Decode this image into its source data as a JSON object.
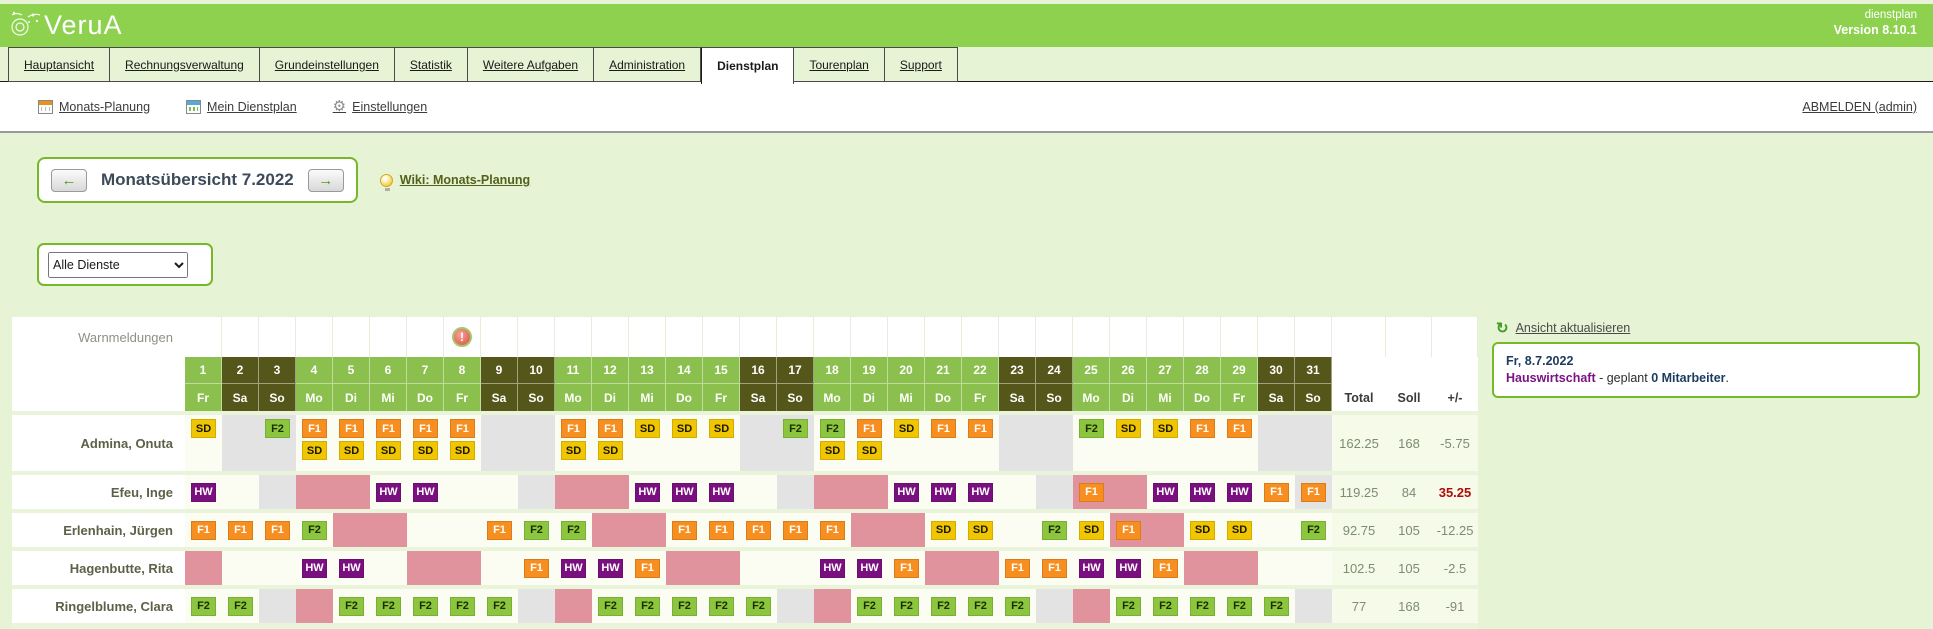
{
  "banner": {
    "logo": "VeruA",
    "app_label": "dienstplan",
    "version_label": "Version 8.10.1"
  },
  "tabs": [
    {
      "label": "Hauptansicht",
      "active": false
    },
    {
      "label": "Rechnungsverwaltung",
      "active": false
    },
    {
      "label": "Grundeinstellungen",
      "active": false
    },
    {
      "label": "Statistik",
      "active": false
    },
    {
      "label": "Weitere Aufgaben",
      "active": false
    },
    {
      "label": "Administration",
      "active": false
    },
    {
      "label": "Dienstplan",
      "active": true
    },
    {
      "label": "Tourenplan",
      "active": false
    },
    {
      "label": "Support",
      "active": false
    }
  ],
  "subnav": {
    "items": [
      {
        "label": "Monats-Planung",
        "icon": "calendar-orange-icon"
      },
      {
        "label": "Mein Dienstplan",
        "icon": "calendar-green-icon"
      },
      {
        "label": "Einstellungen",
        "icon": "gear-icon"
      }
    ],
    "logout": "ABMELDEN (admin)"
  },
  "toolbar": {
    "title": "Monatsübersicht 7.2022",
    "prev": "←",
    "next": "→",
    "wiki_link": "Wiki: Monats-Planung"
  },
  "filter": {
    "selected": "Alle Dienste"
  },
  "roster": {
    "warnings_label": "Warnmeldungen",
    "warning_day": 8,
    "warning_glyph": "!",
    "day_names": [
      "Fr",
      "Sa",
      "So",
      "Mo",
      "Di",
      "Mi",
      "Do",
      "Fr",
      "Sa",
      "So",
      "Mo",
      "Di",
      "Mi",
      "Do",
      "Fr",
      "Sa",
      "So",
      "Mo",
      "Di",
      "Mi",
      "Do",
      "Fr",
      "Sa",
      "So",
      "Mo",
      "Di",
      "Mi",
      "Do",
      "Fr",
      "Sa",
      "So"
    ],
    "summary_headers": [
      "Total",
      "Soll",
      "+/-"
    ],
    "employees": [
      {
        "name": "Admina, Onuta",
        "total": "162.25",
        "soll": "168",
        "diff": "-5.75",
        "diff_alert": false,
        "cells": [
          "w:SD",
          "g:",
          "g:F2",
          "w:F1+SD",
          "w:F1+SD",
          "w:F1+SD",
          "w:F1+SD",
          "w:F1+SD",
          "g:",
          "g:",
          "w:F1+SD",
          "w:F1+SD",
          "w:SD",
          "w:SD",
          "w:SD",
          "g:",
          "g:F2",
          "w:F2+SD",
          "w:F1+SD",
          "w:SD",
          "w:F1",
          "w:F1",
          "g:",
          "g:",
          "w:F2",
          "w:SD",
          "w:SD",
          "w:F1",
          "w:F1",
          "g:",
          "g:"
        ]
      },
      {
        "name": "Efeu, Inge",
        "total": "119.25",
        "soll": "84",
        "diff": "35.25",
        "diff_alert": true,
        "cells": [
          "w:HW",
          "w:",
          "g:",
          "p:",
          "p:",
          "w:HW",
          "w:HW",
          "w:",
          "w:",
          "g:",
          "p:",
          "p:",
          "w:HW",
          "w:HW",
          "w:HW",
          "w:",
          "g:",
          "p:",
          "p:",
          "w:HW",
          "w:HW",
          "w:HW",
          "w:",
          "g:",
          "p:F1",
          "p:",
          "w:HW",
          "w:HW",
          "w:HW",
          "w:F1",
          "g:F1"
        ]
      },
      {
        "name": "Erlenhain, Jürgen",
        "total": "92.75",
        "soll": "105",
        "diff": "-12.25",
        "diff_alert": false,
        "cells": [
          "w:F1",
          "w:F1",
          "w:F1",
          "w:F2",
          "p:",
          "p:",
          "w:",
          "w:",
          "w:F1",
          "w:F2",
          "w:F2",
          "p:",
          "p:",
          "w:F1",
          "w:F1",
          "w:F1",
          "w:F1",
          "w:F1",
          "p:",
          "p:",
          "w:SD",
          "w:SD",
          "w:",
          "w:F2",
          "w:SD",
          "p:F1",
          "p:",
          "w:SD",
          "w:SD",
          "w:",
          "w:F2"
        ]
      },
      {
        "name": "Hagenbutte, Rita",
        "total": "102.5",
        "soll": "105",
        "diff": "-2.5",
        "diff_alert": false,
        "cells": [
          "p:",
          "w:",
          "w:",
          "w:HW",
          "w:HW",
          "w:",
          "p:",
          "p:",
          "w:",
          "w:F1",
          "w:HW",
          "w:HW",
          "w:F1",
          "p:",
          "p:",
          "w:",
          "w:",
          "w:HW",
          "w:HW",
          "w:F1",
          "p:",
          "p:",
          "w:F1",
          "w:F1",
          "w:HW",
          "w:HW",
          "w:F1",
          "p:",
          "p:",
          "w:",
          "w:"
        ]
      },
      {
        "name": "Ringelblume, Clara",
        "total": "77",
        "soll": "168",
        "diff": "-91",
        "diff_alert": false,
        "cells": [
          "w:F2",
          "w:F2",
          "g:",
          "p:",
          "w:F2",
          "w:F2",
          "w:F2",
          "w:F2",
          "w:F2",
          "g:",
          "p:",
          "w:F2",
          "w:F2",
          "w:F2",
          "w:F2",
          "w:F2",
          "g:",
          "p:",
          "w:F2",
          "w:F2",
          "w:F2",
          "w:F2",
          "w:F2",
          "g:",
          "p:",
          "w:F2",
          "w:F2",
          "w:F2",
          "w:F2",
          "w:F2",
          "g:"
        ]
      }
    ]
  },
  "badge_colors": {
    "SD": {
      "bg": "#f0c501",
      "fg": "#1a1a00"
    },
    "F1": {
      "bg": "#f78f20",
      "fg": "#ffffff"
    },
    "F2": {
      "bg": "#8cc63f",
      "fg": "#1d2b00"
    },
    "HW": {
      "bg": "#7a1080",
      "fg": "#ffffff"
    }
  },
  "cell_colors": {
    "plain": "#fbfdf3",
    "gray": "#e3e3e3",
    "pink": "#e0939c"
  },
  "header_colors": {
    "weekday": "#8cc04e",
    "weekend": "#54561a",
    "banner": "#8dd14f"
  },
  "right_panel": {
    "refresh_label": "Ansicht aktualisieren",
    "info_date": "Fr, 8.7.2022",
    "info_dept": "Hauswirtschaft",
    "info_mid": " - geplant ",
    "info_count": "0 Mitarbeiter",
    "info_end": "."
  }
}
